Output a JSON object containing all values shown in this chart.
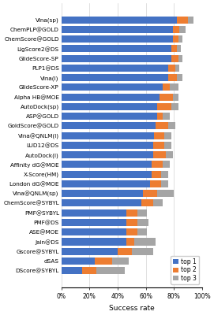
{
  "categories": [
    "Vina(sp)",
    "ChemPLP@GOLD",
    "ChemScore@GOLD",
    "LigScore2@DS",
    "GlideScore-SP",
    "PLP1@DS",
    "Vina(l)",
    "GlideScore-XP",
    "Alpha HB@MOE",
    "AutoDock(sp)",
    "ASP@GOLD",
    "GoldScore@GOLD",
    "Vina@QNLM(l)",
    "LUD12@DS",
    "AutoDock(l)",
    "Affinity dG@MOE",
    "X-Score(HM)",
    "London dG@MOE",
    "Vina@QNLM(sp)",
    "ChemScore@SYBYL",
    "PMF@SYBYL",
    "PMF@DS",
    "ASE@MOE",
    "Jain@DS",
    "Gscore@SYBYL",
    "dSAS",
    "DScore@SYBYL"
  ],
  "top1": [
    82,
    79,
    79,
    78,
    78,
    76,
    76,
    72,
    70,
    68,
    68,
    67,
    66,
    65,
    65,
    64,
    64,
    63,
    58,
    57,
    46,
    46,
    46,
    46,
    40,
    24,
    15
  ],
  "top2": [
    8,
    5,
    4,
    4,
    5,
    5,
    6,
    5,
    9,
    10,
    4,
    9,
    7,
    8,
    9,
    8,
    7,
    8,
    10,
    8,
    8,
    8,
    8,
    6,
    10,
    12,
    10
  ],
  "top3": [
    4,
    4,
    3,
    3,
    3,
    3,
    4,
    6,
    4,
    5,
    5,
    5,
    5,
    5,
    5,
    5,
    5,
    5,
    12,
    7,
    7,
    8,
    7,
    15,
    15,
    12,
    20
  ],
  "colors": {
    "top1": "#4472C4",
    "top2": "#ED7D31",
    "top3": "#A5A5A5"
  },
  "xlabel": "Success rate",
  "legend_labels": [
    "top 1",
    "top 2",
    "top 3"
  ],
  "xlim": [
    0,
    100
  ],
  "xticks": [
    0,
    20,
    40,
    60,
    80,
    100
  ],
  "xticklabels": [
    "0%",
    "20%",
    "40%",
    "60%",
    "80%",
    "100%"
  ],
  "figsize": [
    2.71,
    4.0
  ],
  "dpi": 100,
  "bar_height": 0.75,
  "label_fontsize": 5.2,
  "tick_fontsize": 5.5,
  "xlabel_fontsize": 6.5
}
